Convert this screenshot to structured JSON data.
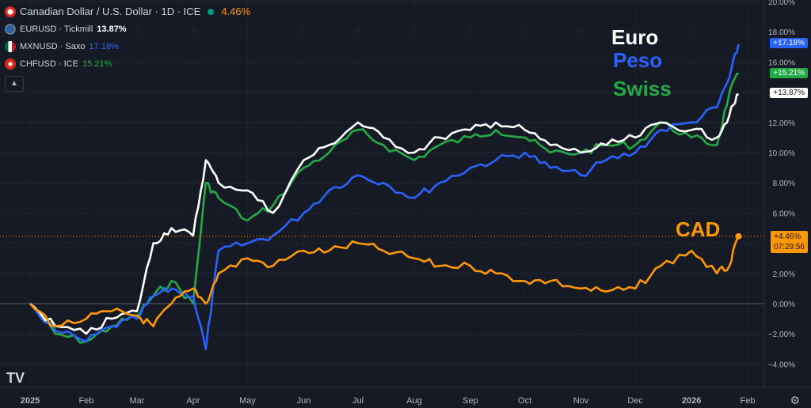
{
  "legend": {
    "main": {
      "name": "Canadian Dollar / U.S. Dollar · 1D · ICE",
      "value": "4.46%",
      "color": "#ff9800",
      "flag": "ca"
    },
    "items": [
      {
        "name": "EURUSD · Tickmill",
        "value": "13.87%",
        "color": "#ffffff",
        "flag": "eu"
      },
      {
        "name": "MXNUSD · Saxo",
        "value": "17.18%",
        "color": "#2962ff",
        "flag": "mx"
      },
      {
        "name": "CHFUSD · ICE",
        "value": "15.21%",
        "color": "#22ab45",
        "flag": "ch"
      }
    ],
    "collapse_icon": "chevron-up-icon"
  },
  "annotations": {
    "euro": "Euro",
    "peso": "Peso",
    "swiss": "Swiss",
    "cad": "CAD"
  },
  "price_tags": {
    "peso": "+17.18%",
    "swiss": "+15.21%",
    "euro": "+13.87%",
    "cad": "+4.46%",
    "countdown": "07:29:56"
  },
  "chart_data": {
    "type": "line",
    "x": [
      "2025-01-01",
      "2025-01-15",
      "2025-02-01",
      "2025-02-15",
      "2025-03-01",
      "2025-03-10",
      "2025-03-20",
      "2025-04-01",
      "2025-04-08",
      "2025-04-15",
      "2025-05-01",
      "2025-05-15",
      "2025-06-01",
      "2025-06-15",
      "2025-07-01",
      "2025-07-15",
      "2025-08-01",
      "2025-08-15",
      "2025-09-01",
      "2025-09-15",
      "2025-10-01",
      "2025-10-15",
      "2025-11-01",
      "2025-11-15",
      "2025-12-01",
      "2025-12-15",
      "2026-01-01",
      "2026-01-15",
      "2026-01-22",
      "2026-01-27"
    ],
    "series": [
      {
        "name": "EURUSD",
        "color": "#ffffff",
        "values": [
          0.0,
          -1.5,
          -2.0,
          -1.0,
          -0.5,
          4.0,
          5.0,
          4.5,
          9.5,
          8.0,
          7.5,
          6.0,
          9.5,
          10.5,
          12.0,
          11.0,
          10.0,
          11.0,
          11.5,
          12.0,
          11.5,
          10.5,
          10.0,
          10.5,
          11.0,
          12.0,
          11.5,
          11.0,
          12.5,
          13.87
        ]
      },
      {
        "name": "MXNUSD",
        "color": "#2962ff",
        "values": [
          0.0,
          -1.8,
          -2.5,
          -1.5,
          -1.0,
          0.5,
          1.0,
          0.5,
          -3.0,
          3.5,
          4.0,
          4.5,
          6.0,
          7.5,
          8.5,
          8.0,
          7.0,
          8.0,
          9.0,
          9.5,
          10.0,
          9.0,
          8.5,
          9.5,
          10.0,
          11.5,
          12.0,
          13.0,
          15.0,
          17.18
        ]
      },
      {
        "name": "CHFUSD",
        "color": "#22ab45",
        "values": [
          0.0,
          -2.0,
          -2.5,
          -1.5,
          -0.8,
          0.5,
          1.5,
          0.0,
          8.0,
          7.0,
          5.5,
          6.5,
          9.0,
          10.0,
          11.5,
          10.5,
          9.5,
          10.5,
          11.0,
          11.5,
          11.0,
          10.0,
          10.0,
          10.5,
          10.5,
          12.0,
          11.0,
          10.5,
          14.0,
          15.21
        ]
      },
      {
        "name": "USDCAD",
        "color": "#ff9800",
        "values": [
          0.0,
          -1.5,
          -1.0,
          -0.5,
          -0.8,
          -1.5,
          0.0,
          1.0,
          0.0,
          2.0,
          3.0,
          2.5,
          3.5,
          3.5,
          4.0,
          3.5,
          3.0,
          2.5,
          2.5,
          2.0,
          1.5,
          1.5,
          1.0,
          0.8,
          1.0,
          2.5,
          3.5,
          2.0,
          2.5,
          4.46
        ]
      }
    ],
    "ylim": [
      -5,
      20
    ],
    "yticks": [
      "−4.00%",
      "−2.00%",
      "0.00%",
      "2.00%",
      "4.00%",
      "6.00%",
      "8.00%",
      "10.00%",
      "12.00%",
      "14.00%",
      "16.00%",
      "18.00%",
      "20.00%"
    ],
    "ytick_values": [
      -4,
      -2,
      0,
      2,
      4,
      6,
      8,
      10,
      12,
      14,
      16,
      18,
      20
    ],
    "xticks": [
      {
        "label": "2025",
        "date": "2025-01-01"
      },
      {
        "label": "Feb",
        "date": "2025-02-01"
      },
      {
        "label": "Mar",
        "date": "2025-03-01"
      },
      {
        "label": "Apr",
        "date": "2025-04-01"
      },
      {
        "label": "May",
        "date": "2025-05-01"
      },
      {
        "label": "Jun",
        "date": "2025-06-01"
      },
      {
        "label": "Jul",
        "date": "2025-07-01"
      },
      {
        "label": "Aug",
        "date": "2025-08-01"
      },
      {
        "label": "Sep",
        "date": "2025-09-01"
      },
      {
        "label": "Oct",
        "date": "2025-10-01"
      },
      {
        "label": "Nov",
        "date": "2025-11-01"
      },
      {
        "label": "Dec",
        "date": "2025-12-01"
      },
      {
        "label": "2026",
        "date": "2026-01-01"
      },
      {
        "label": "Feb",
        "date": "2026-02-01"
      }
    ]
  }
}
